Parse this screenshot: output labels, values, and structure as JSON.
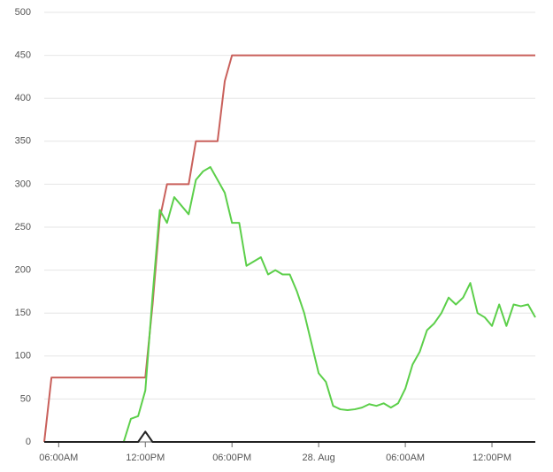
{
  "chart_data": {
    "type": "line",
    "x": [
      5,
      5.5,
      6,
      6.5,
      7,
      7.5,
      8,
      8.5,
      9,
      9.5,
      10,
      10.5,
      11,
      11.5,
      12,
      12.5,
      13,
      13.5,
      14,
      14.5,
      15,
      15.5,
      16,
      16.5,
      17,
      17.5,
      18,
      18.5,
      19,
      19.5,
      20,
      20.5,
      21,
      21.5,
      22,
      22.5,
      23,
      23.5,
      24,
      24.5,
      25,
      25.5,
      26,
      26.5,
      27,
      27.5,
      28,
      28.5,
      29,
      29.5,
      30,
      30.5,
      31,
      31.5,
      32,
      32.5,
      33,
      33.5,
      34,
      34.5,
      35,
      35.5,
      36,
      36.5,
      37,
      37.5,
      38,
      38.5,
      39
    ],
    "series": [
      {
        "color": "#c9605b",
        "values": [
          0,
          75,
          75,
          75,
          75,
          75,
          75,
          75,
          75,
          75,
          75,
          75,
          75,
          75,
          75,
          160,
          260,
          300,
          300,
          300,
          300,
          350,
          350,
          350,
          350,
          420,
          450,
          450,
          450,
          450,
          450,
          450,
          450,
          450,
          450,
          450,
          450,
          450,
          450,
          450,
          450,
          450,
          450,
          450,
          450,
          450,
          450,
          450,
          450,
          450,
          450,
          450,
          450,
          450,
          450,
          450,
          450,
          450,
          450,
          450,
          450,
          450,
          450,
          450,
          450,
          450,
          450,
          450,
          450
        ]
      },
      {
        "color": "#5ccf4a",
        "values": [
          null,
          null,
          null,
          null,
          null,
          null,
          null,
          null,
          null,
          null,
          null,
          0,
          27,
          30,
          60,
          170,
          270,
          255,
          285,
          275,
          265,
          305,
          315,
          320,
          305,
          290,
          255,
          255,
          205,
          210,
          215,
          195,
          200,
          195,
          195,
          175,
          150,
          115,
          80,
          70,
          42,
          38,
          37,
          38,
          40,
          44,
          42,
          45,
          40,
          45,
          62,
          90,
          105,
          130,
          138,
          150,
          168,
          160,
          168,
          185,
          150,
          145,
          135,
          160,
          135,
          160,
          158,
          160,
          145
        ]
      },
      {
        "color": "#222222",
        "values": [
          0,
          0,
          0,
          0,
          0,
          0,
          0,
          0,
          0,
          0,
          0,
          0,
          0,
          0,
          12,
          0,
          0,
          0,
          0,
          0,
          0,
          0,
          0,
          0,
          0,
          0,
          0,
          0,
          0,
          0,
          0,
          0,
          0,
          0,
          0,
          0,
          0,
          0,
          0,
          0,
          0,
          0,
          0,
          0,
          0,
          0,
          0,
          0,
          0,
          0,
          0,
          0,
          0,
          0,
          0,
          0,
          0,
          0,
          0,
          0,
          0,
          0,
          0,
          0,
          0,
          0,
          0,
          0,
          0
        ]
      }
    ],
    "xlim": [
      5,
      39
    ],
    "xticks": [
      {
        "value": 6,
        "label": "06:00AM"
      },
      {
        "value": 12,
        "label": "12:00PM"
      },
      {
        "value": 18,
        "label": "06:00PM"
      },
      {
        "value": 24,
        "label": "28. Aug"
      },
      {
        "value": 30,
        "label": "06:00AM"
      },
      {
        "value": 36,
        "label": "12:00PM"
      }
    ],
    "ylim": [
      0,
      500
    ],
    "yticks": [
      0,
      50,
      100,
      150,
      200,
      250,
      300,
      350,
      400,
      450,
      500
    ],
    "grid": true
  }
}
